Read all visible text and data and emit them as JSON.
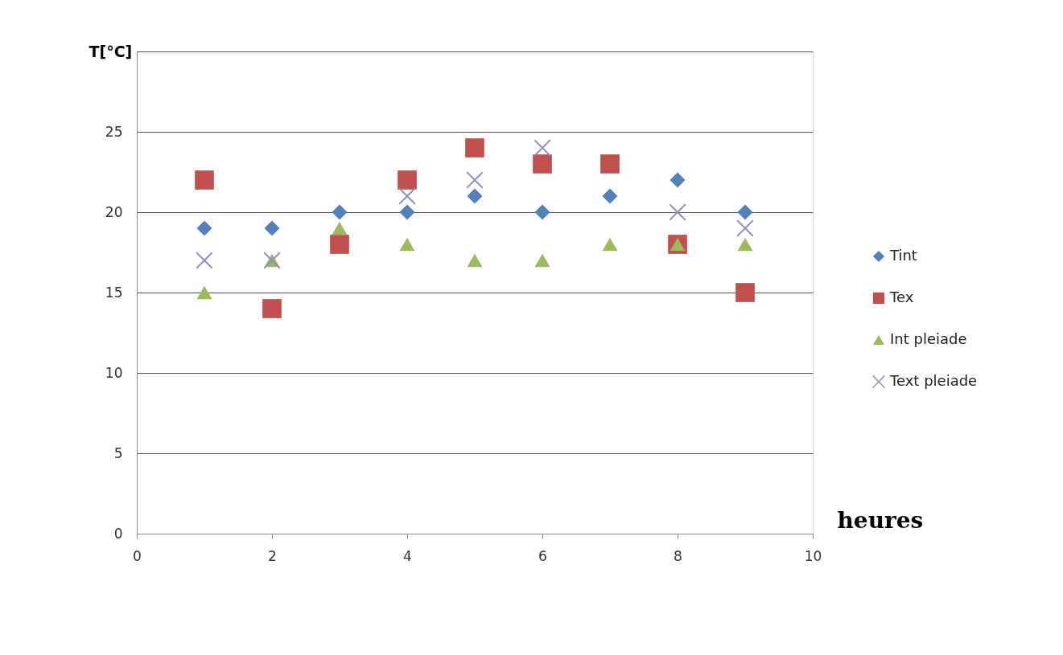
{
  "chart_data": {
    "type": "scatter",
    "xlabel": "heures",
    "ylabel": "T[°C]",
    "x": [
      1,
      2,
      3,
      4,
      5,
      6,
      7,
      8,
      9
    ],
    "series": [
      {
        "name": "Tint",
        "color": "#4f81bd",
        "marker": "diamond",
        "values": [
          19,
          19,
          20,
          20,
          21,
          20,
          21,
          22,
          20
        ]
      },
      {
        "name": "Tex",
        "color": "#c0504d",
        "marker": "square",
        "values": [
          22,
          14,
          18,
          22,
          24,
          23,
          23,
          18,
          15
        ]
      },
      {
        "name": "Int pleiade",
        "color": "#9bbb59",
        "marker": "triangle",
        "values": [
          15,
          17,
          19,
          18,
          17,
          17,
          18,
          18,
          18
        ]
      },
      {
        "name": "Text pleiade",
        "color": "#8f8fc8",
        "marker": "cross",
        "values": [
          17,
          17,
          null,
          21,
          22,
          24,
          null,
          20,
          19
        ]
      }
    ],
    "xlim": [
      0,
      10
    ],
    "xticks": [
      0,
      2,
      4,
      6,
      8,
      10
    ],
    "ylim": [
      0,
      30
    ],
    "yticks": [
      0,
      5,
      10,
      15,
      20,
      25,
      {
        "value": 30,
        "label": null
      }
    ],
    "grid": "y",
    "legend": "right"
  }
}
